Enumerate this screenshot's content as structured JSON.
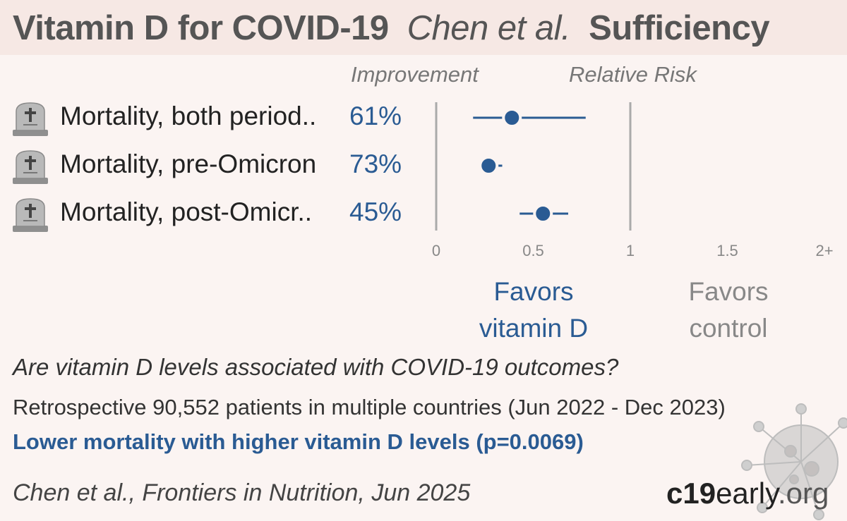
{
  "header": {
    "title": "Vitamin D for COVID-19",
    "study": "Chen et al.",
    "variant": "Sufficiency"
  },
  "columns": {
    "improvement": "Improvement",
    "relative_risk": "Relative Risk"
  },
  "rows": [
    {
      "icon": "tombstone-icon",
      "label": "Mortality, both period..",
      "improvement": "61%"
    },
    {
      "icon": "tombstone-icon",
      "label": "Mortality, pre-Omicron",
      "improvement": "73%"
    },
    {
      "icon": "tombstone-icon",
      "label": "Mortality, post-Omicr..",
      "improvement": "45%"
    }
  ],
  "chart_data": {
    "type": "forest",
    "x_ticks": [
      "0",
      "0.5",
      "1",
      "1.5",
      "2+"
    ],
    "xlim": [
      0,
      2
    ],
    "reference_line": 1,
    "points": [
      {
        "name": "Mortality, both period..",
        "rr": 0.39,
        "ci": [
          0.19,
          0.77
        ]
      },
      {
        "name": "Mortality, pre-Omicron",
        "rr": 0.27,
        "ci": [
          0.27,
          0.34
        ]
      },
      {
        "name": "Mortality, post-Omicr..",
        "rr": 0.55,
        "ci": [
          0.43,
          0.68
        ]
      }
    ],
    "favors_left": [
      "Favors",
      "vitamin D"
    ],
    "favors_right": [
      "Favors",
      "control"
    ],
    "colors": {
      "marker": "#2a5b93",
      "axis": "#aaaaaa"
    }
  },
  "summary": {
    "question": "Are vitamin D levels associated with COVID-19 outcomes?",
    "design": "Retrospective 90,552 patients in multiple countries (Jun 2022 - Dec 2023)",
    "result": "Lower mortality with higher vitamin D levels (p=0.0069)",
    "citation": "Chen et al., Frontiers in Nutrition, Jun 2025"
  },
  "brand": {
    "bold": "c19",
    "rest": "early",
    "tld": ".org"
  }
}
